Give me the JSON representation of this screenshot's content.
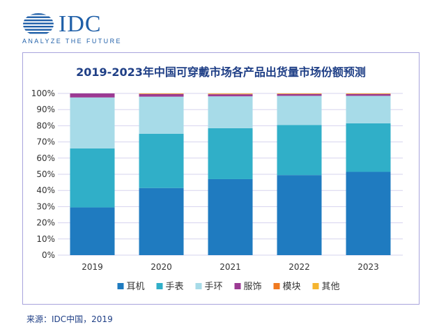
{
  "logo": {
    "name": "IDC",
    "tagline": "ANALYZE THE FUTURE"
  },
  "source_note": "来源：IDC中国，2019",
  "colors": {
    "earphones": "#1f7bc0",
    "watch": "#30afc8",
    "band": "#a7dbe8",
    "apparel": "#9b3a93",
    "module": "#f07a20",
    "other": "#f5b530",
    "title": "#1f3f86",
    "frame": "#a8a3dc",
    "grid": "#d6d3ee"
  },
  "chart_data": {
    "type": "bar",
    "stacked": true,
    "title": "2019-2023年中国可穿戴市场各产品出货量市场份额预测",
    "xlabel": "",
    "ylabel": "",
    "ylim": [
      0,
      100
    ],
    "yticks": [
      "0%",
      "10%",
      "20%",
      "30%",
      "40%",
      "50%",
      "60%",
      "70%",
      "80%",
      "90%",
      "100%"
    ],
    "categories": [
      "2019",
      "2020",
      "2021",
      "2022",
      "2023"
    ],
    "legend_position": "bottom",
    "grid": true,
    "series": [
      {
        "name": "耳机",
        "color_key": "earphones",
        "values": [
          29.5,
          41.5,
          47,
          49.5,
          51.5
        ]
      },
      {
        "name": "手表",
        "color_key": "watch",
        "values": [
          36.5,
          33.5,
          31.5,
          31,
          30
        ]
      },
      {
        "name": "手环",
        "color_key": "band",
        "values": [
          31.5,
          23,
          19.7,
          18,
          17
        ]
      },
      {
        "name": "服饰",
        "color_key": "apparel",
        "values": [
          2.5,
          1.6,
          1.3,
          1.1,
          1.1
        ]
      },
      {
        "name": "模块",
        "color_key": "module",
        "values": [
          0.0,
          0.2,
          0.2,
          0.2,
          0.2
        ]
      },
      {
        "name": "其他",
        "color_key": "other",
        "values": [
          0.0,
          0.2,
          0.3,
          0.2,
          0.2
        ]
      }
    ]
  }
}
